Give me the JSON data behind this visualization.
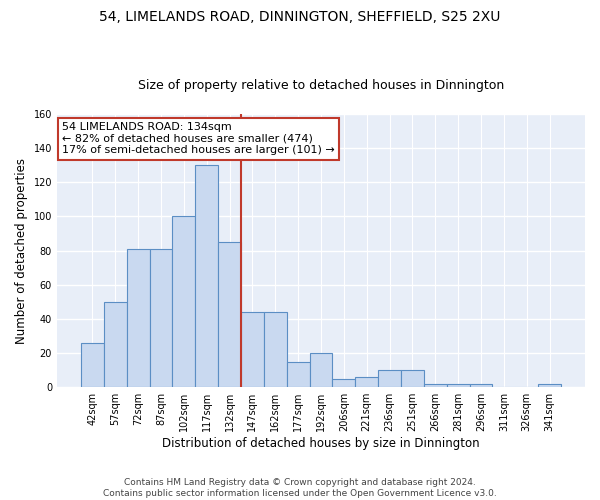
{
  "title1": "54, LIMELANDS ROAD, DINNINGTON, SHEFFIELD, S25 2XU",
  "title2": "Size of property relative to detached houses in Dinnington",
  "xlabel": "Distribution of detached houses by size in Dinnington",
  "ylabel": "Number of detached properties",
  "bar_labels": [
    "42sqm",
    "57sqm",
    "72sqm",
    "87sqm",
    "102sqm",
    "117sqm",
    "132sqm",
    "147sqm",
    "162sqm",
    "177sqm",
    "192sqm",
    "206sqm",
    "221sqm",
    "236sqm",
    "251sqm",
    "266sqm",
    "281sqm",
    "296sqm",
    "311sqm",
    "326sqm",
    "341sqm"
  ],
  "bar_values": [
    26,
    50,
    81,
    81,
    100,
    130,
    85,
    44,
    44,
    15,
    20,
    5,
    6,
    10,
    10,
    2,
    2,
    2,
    0,
    0,
    2
  ],
  "bar_color": "#c9d9f0",
  "bar_edge_color": "#5b8ec4",
  "vline_x_index": 6,
  "vline_color": "#c0392b",
  "annotation_text": "54 LIMELANDS ROAD: 134sqm\n← 82% of detached houses are smaller (474)\n17% of semi-detached houses are larger (101) →",
  "annotation_box_color": "#ffffff",
  "annotation_box_edge_color": "#c0392b",
  "ylim": [
    0,
    160
  ],
  "yticks": [
    0,
    20,
    40,
    60,
    80,
    100,
    120,
    140,
    160
  ],
  "background_color": "#e8eef8",
  "grid_color": "#ffffff",
  "footer": "Contains HM Land Registry data © Crown copyright and database right 2024.\nContains public sector information licensed under the Open Government Licence v3.0.",
  "title1_fontsize": 10,
  "title2_fontsize": 9,
  "xlabel_fontsize": 8.5,
  "ylabel_fontsize": 8.5,
  "tick_fontsize": 7,
  "annotation_fontsize": 8,
  "footer_fontsize": 6.5
}
